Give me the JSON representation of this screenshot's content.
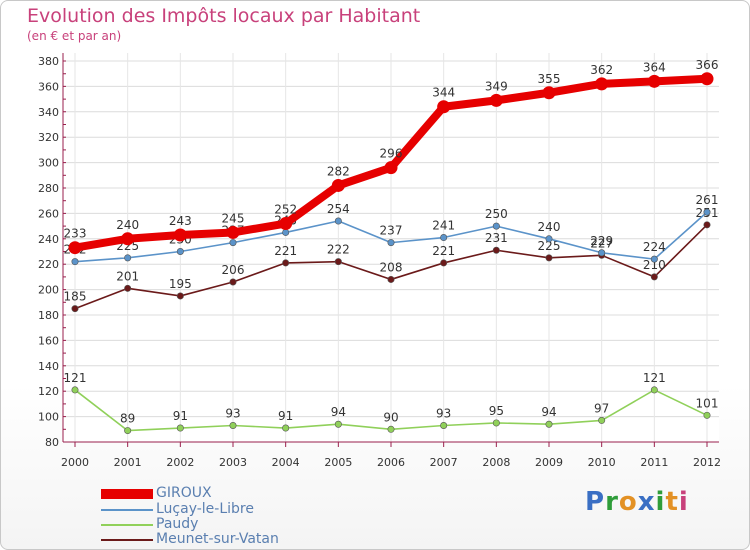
{
  "title": "Evolution des Impôts locaux par Habitant",
  "subtitle": "(en € et par an)",
  "logo": {
    "text": "Proxiti",
    "colors": [
      "#3a6fc4",
      "#2f9d3a",
      "#e39124",
      "#3a6fc4",
      "#2f9d3a",
      "#e39124",
      "#c8417b"
    ]
  },
  "chart_data": {
    "type": "line",
    "title": "Evolution des Impôts locaux par Habitant",
    "subtitle": "(en € et par an)",
    "xlabel": "",
    "ylabel": "",
    "x": [
      "2000",
      "2001",
      "2002",
      "2003",
      "2004",
      "2005",
      "2006",
      "2007",
      "2008",
      "2009",
      "2010",
      "2011",
      "2012"
    ],
    "ylim": [
      80,
      380
    ],
    "yticks": [
      80,
      100,
      120,
      140,
      160,
      180,
      200,
      220,
      240,
      260,
      280,
      300,
      320,
      340,
      360,
      380
    ],
    "grid": true,
    "legend_position": "bottom-left",
    "series": [
      {
        "name": "GIROUX",
        "color": "#e60000",
        "values": [
          233,
          240,
          243,
          245,
          252,
          282,
          296,
          344,
          349,
          355,
          362,
          364,
          366
        ]
      },
      {
        "name": "Luçay-le-Libre",
        "color": "#5b93c9",
        "values": [
          222,
          225,
          230,
          237,
          245,
          254,
          237,
          241,
          250,
          240,
          229,
          224,
          261
        ]
      },
      {
        "name": "Paudy",
        "color": "#90d05a",
        "values": [
          121,
          89,
          91,
          93,
          91,
          94,
          90,
          93,
          95,
          94,
          97,
          121,
          101
        ]
      },
      {
        "name": "Meunet-sur-Vatan",
        "color": "#6b1a1a",
        "values": [
          185,
          201,
          195,
          206,
          221,
          222,
          208,
          221,
          231,
          225,
          227,
          210,
          251
        ]
      }
    ]
  }
}
